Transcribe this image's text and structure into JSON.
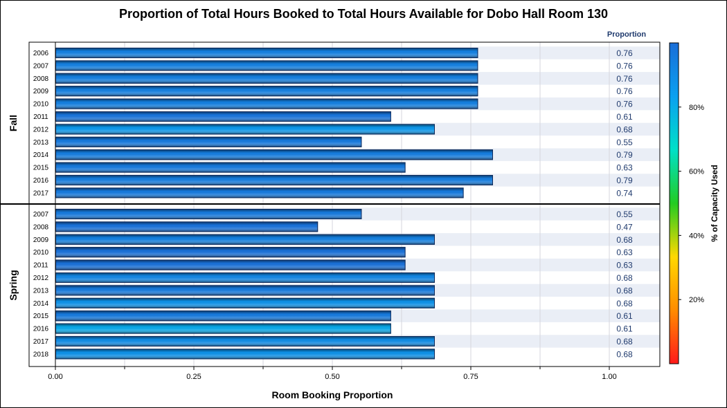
{
  "chart_data": {
    "type": "bar",
    "orientation": "horizontal",
    "title": "Proportion of Total Hours Booked to Total Hours Available for Dobo Hall Room 130",
    "xlabel": "Room Booking Proportion",
    "value_column_header": "Proportion",
    "xlim": [
      0,
      1.09
    ],
    "xticks": [
      "0.00",
      "0.25",
      "0.50",
      "0.75",
      "1.00"
    ],
    "grid": true,
    "panels": [
      {
        "name": "Fall",
        "categories": [
          "2006",
          "2007",
          "2008",
          "2009",
          "2010",
          "2011",
          "2012",
          "2013",
          "2014",
          "2015",
          "2016",
          "2017"
        ],
        "values": [
          0.763,
          0.763,
          0.763,
          0.763,
          0.763,
          0.606,
          0.685,
          0.553,
          0.79,
          0.632,
          0.79,
          0.737
        ],
        "labels": [
          "0.76",
          "0.76",
          "0.76",
          "0.76",
          "0.76",
          "0.61",
          "0.68",
          "0.55",
          "0.79",
          "0.63",
          "0.79",
          "0.74"
        ],
        "capacity_pct": [
          94,
          94,
          94,
          94,
          94,
          98,
          86,
          96,
          95,
          96,
          95,
          96
        ]
      },
      {
        "name": "Spring",
        "categories": [
          "2007",
          "2008",
          "2009",
          "2010",
          "2011",
          "2012",
          "2013",
          "2014",
          "2015",
          "2016",
          "2017",
          "2018"
        ],
        "values": [
          0.553,
          0.474,
          0.685,
          0.632,
          0.632,
          0.685,
          0.685,
          0.685,
          0.606,
          0.606,
          0.685,
          0.685
        ],
        "labels": [
          "0.55",
          "0.47",
          "0.68",
          "0.63",
          "0.63",
          "0.68",
          "0.68",
          "0.68",
          "0.61",
          "0.61",
          "0.68",
          "0.68"
        ],
        "capacity_pct": [
          96,
          99,
          94,
          99,
          99,
          92,
          96,
          88,
          96,
          81,
          90,
          88
        ]
      }
    ],
    "color_axis": {
      "title": "% of Capacity Used",
      "range": [
        0,
        100
      ],
      "ticks": [
        "20%",
        "40%",
        "60%",
        "80%"
      ],
      "tick_values": [
        20,
        40,
        60,
        80
      ],
      "colors": [
        "#ff1a1a",
        "#ff8c00",
        "#ffd800",
        "#22cc22",
        "#00e0c8",
        "#0aa0f0",
        "#1a6ed8"
      ]
    }
  }
}
